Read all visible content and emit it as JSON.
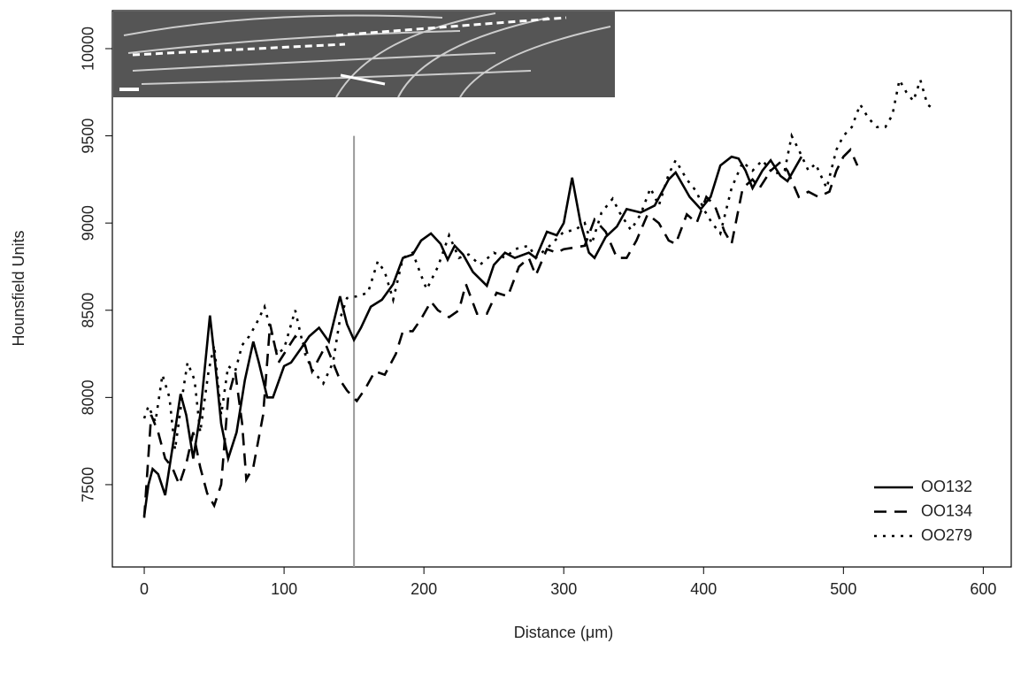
{
  "chart_data": {
    "type": "line",
    "xlabel": "Distance (μm)",
    "ylabel": "Hounsfield Units",
    "xlim": [
      -22.8,
      620
    ],
    "ylim": [
      7028,
      10218
    ],
    "xticks": [
      0,
      100,
      200,
      300,
      400,
      500,
      600
    ],
    "yticks": [
      7500,
      8000,
      8500,
      9000,
      9500,
      10000
    ],
    "reference_line": {
      "x": 150,
      "y_top": 9500,
      "color": "#999999"
    },
    "legend": "bottom-right",
    "series": [
      {
        "name": "OO132",
        "color": "#000000",
        "dash": "solid",
        "x": [
          0,
          3,
          6,
          10,
          15,
          20,
          26,
          30,
          35,
          40,
          47,
          50,
          55,
          60,
          66,
          72,
          78,
          82,
          88,
          92,
          100,
          105,
          112,
          118,
          125,
          132,
          140,
          145,
          150,
          155,
          162,
          170,
          178,
          185,
          192,
          198,
          205,
          212,
          217,
          222,
          228,
          235,
          245,
          250,
          258,
          265,
          275,
          280,
          288,
          295,
          300,
          306,
          312,
          318,
          322,
          330,
          338,
          345,
          355,
          365,
          375,
          380,
          390,
          398,
          405,
          412,
          420,
          425,
          430,
          435,
          442,
          448,
          455,
          460,
          470
        ],
        "values": [
          7320,
          7500,
          7590,
          7560,
          7440,
          7700,
          8020,
          7900,
          7650,
          7900,
          8470,
          8250,
          7850,
          7650,
          7800,
          8100,
          8320,
          8200,
          8000,
          8000,
          8180,
          8200,
          8280,
          8350,
          8400,
          8320,
          8580,
          8420,
          8330,
          8400,
          8520,
          8560,
          8650,
          8800,
          8820,
          8900,
          8940,
          8880,
          8790,
          8870,
          8820,
          8720,
          8640,
          8760,
          8830,
          8800,
          8830,
          8800,
          8950,
          8930,
          9000,
          9260,
          9000,
          8830,
          8800,
          8920,
          8980,
          9080,
          9060,
          9100,
          9250,
          9290,
          9150,
          9080,
          9150,
          9330,
          9380,
          9370,
          9300,
          9200,
          9300,
          9360,
          9270,
          9240,
          9380
        ]
      },
      {
        "name": "OO134",
        "color": "#000000",
        "dash": "dashed",
        "x": [
          0,
          5,
          10,
          15,
          20,
          25,
          30,
          35,
          40,
          45,
          50,
          55,
          60,
          65,
          70,
          73,
          78,
          85,
          90,
          96,
          100,
          108,
          115,
          120,
          130,
          140,
          145,
          152,
          158,
          165,
          172,
          180,
          185,
          192,
          198,
          205,
          210,
          218,
          225,
          230,
          238,
          245,
          252,
          260,
          268,
          275,
          280,
          288,
          295,
          300,
          308,
          315,
          322,
          330,
          338,
          345,
          352,
          360,
          368,
          375,
          380,
          388,
          395,
          402,
          408,
          415,
          420,
          428,
          435,
          440,
          448,
          455,
          460,
          468,
          475,
          482,
          490,
          495,
          500,
          505,
          510
        ],
        "values": [
          7310,
          7900,
          7800,
          7650,
          7600,
          7500,
          7620,
          7800,
          7600,
          7450,
          7380,
          7500,
          8000,
          8150,
          7850,
          7530,
          7600,
          7900,
          8420,
          8200,
          8250,
          8350,
          8300,
          8150,
          8300,
          8100,
          8040,
          7980,
          8050,
          8150,
          8130,
          8250,
          8380,
          8380,
          8450,
          8550,
          8500,
          8460,
          8500,
          8650,
          8480,
          8480,
          8600,
          8580,
          8750,
          8800,
          8700,
          8850,
          8830,
          8850,
          8860,
          8870,
          9020,
          8950,
          8800,
          8800,
          8900,
          9050,
          9000,
          8900,
          8880,
          9050,
          9000,
          9150,
          9100,
          8950,
          8880,
          9200,
          9250,
          9200,
          9300,
          9350,
          9300,
          9150,
          9180,
          9150,
          9180,
          9300,
          9380,
          9420,
          9330
        ]
      },
      {
        "name": "OO279",
        "color": "#000000",
        "dash": "dotted",
        "x": [
          0,
          3,
          8,
          13,
          18,
          22,
          28,
          31,
          36,
          40,
          46,
          50,
          55,
          60,
          65,
          70,
          75,
          80,
          86,
          90,
          95,
          100,
          108,
          115,
          120,
          128,
          135,
          140,
          145,
          152,
          160,
          167,
          172,
          178,
          185,
          192,
          198,
          202,
          210,
          218,
          225,
          232,
          240,
          250,
          258,
          265,
          275,
          280,
          290,
          300,
          308,
          315,
          320,
          327,
          335,
          340,
          348,
          355,
          362,
          368,
          375,
          380,
          388,
          395,
          400,
          406,
          412,
          420,
          428,
          435,
          442,
          450,
          458,
          463,
          468,
          475,
          480,
          488,
          495,
          500,
          506,
          512,
          518,
          524,
          530,
          535,
          540,
          545,
          550,
          555,
          560,
          565
        ],
        "values": [
          7880,
          7950,
          7860,
          8130,
          8000,
          7700,
          8050,
          8200,
          8100,
          7800,
          8150,
          8300,
          7900,
          8180,
          8150,
          8300,
          8350,
          8420,
          8520,
          8400,
          8250,
          8280,
          8500,
          8250,
          8160,
          8080,
          8200,
          8450,
          8570,
          8580,
          8600,
          8780,
          8720,
          8560,
          8800,
          8830,
          8700,
          8620,
          8750,
          8930,
          8800,
          8820,
          8760,
          8830,
          8800,
          8850,
          8870,
          8800,
          8870,
          8950,
          8960,
          9000,
          8880,
          9060,
          9140,
          9060,
          8960,
          9050,
          9200,
          9100,
          9280,
          9360,
          9250,
          9180,
          9080,
          9000,
          8940,
          9200,
          9350,
          9300,
          9360,
          9280,
          9300,
          9500,
          9420,
          9300,
          9340,
          9200,
          9420,
          9500,
          9550,
          9680,
          9600,
          9550,
          9550,
          9620,
          9820,
          9750,
          9700,
          9820,
          9680,
          9650
        ]
      }
    ]
  }
}
